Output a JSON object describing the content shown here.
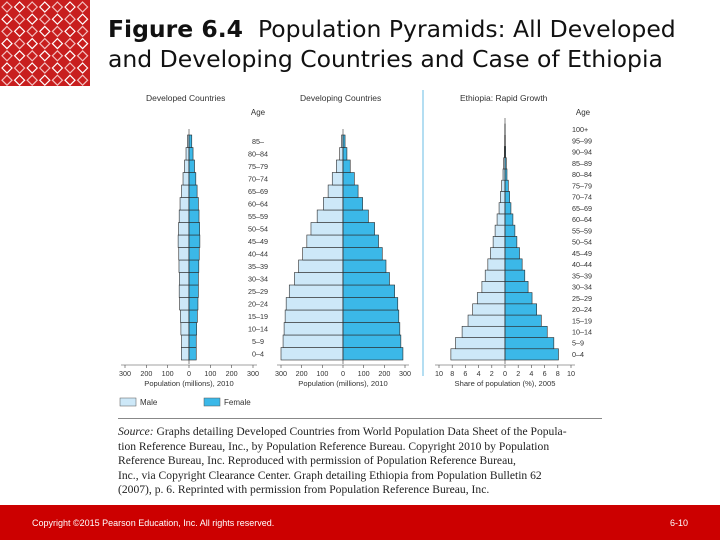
{
  "title": {
    "figure_label": "Figure 6.4",
    "text_line1": "Population Pyramids: All Developed",
    "text_line2": "and Developing Countries and Case of Ethiopia"
  },
  "source": {
    "lead": "Source:",
    "lines": [
      "Graphs detailing Developed Countries from World Population Data Sheet of the Popula-",
      "tion Reference Bureau, Inc., by Population Reference Bureau. Copyright 2010 by Population",
      "Reference Bureau, Inc. Reproduced with permission of Population Reference Bureau,",
      "Inc., via Copyright Clearance Center. Graph detailing Ethiopia from Population Bulletin 62",
      "(2007), p. 6. Reprinted with permission from Population Reference Bureau, Inc."
    ]
  },
  "footer": {
    "copyright": "Copyright ©2015 Pearson Education, Inc. All rights reserved.",
    "page": "6-10"
  },
  "colors": {
    "male": "#cde8f8",
    "female": "#3bb8e8",
    "footer": "#cc0000"
  },
  "chart_data": [
    {
      "type": "bar",
      "subtype": "population-pyramid",
      "title": "Developed Countries",
      "age_header": "Age",
      "categories": [
        "0–4",
        "5–9",
        "10–14",
        "15–19",
        "20–24",
        "25–29",
        "30–34",
        "35–39",
        "40–44",
        "45–49",
        "50–54",
        "55–59",
        "60–64",
        "65–69",
        "70–74",
        "75–79",
        "80–84",
        "85–"
      ],
      "series": [
        {
          "name": "Male",
          "values": [
            36,
            35,
            38,
            40,
            44,
            46,
            45,
            47,
            48,
            51,
            49,
            46,
            42,
            35,
            28,
            21,
            14,
            7
          ]
        },
        {
          "name": "Female",
          "values": [
            34,
            34,
            36,
            39,
            42,
            44,
            44,
            46,
            48,
            51,
            50,
            47,
            44,
            38,
            32,
            26,
            19,
            13
          ]
        }
      ],
      "xlabel": "Population (millions), 2010",
      "xticks": [
        "300",
        "200",
        "100",
        "0",
        "100",
        "200",
        "300"
      ],
      "xlim": [
        -300,
        300
      ]
    },
    {
      "type": "bar",
      "subtype": "population-pyramid",
      "title": "Developing Countries",
      "categories": [
        "0–4",
        "5–9",
        "10–14",
        "15–19",
        "20–24",
        "25–29",
        "30–34",
        "35–39",
        "40–44",
        "45–49",
        "50–54",
        "55–59",
        "60–64",
        "65–69",
        "70–74",
        "75–79",
        "80–84",
        "85–"
      ],
      "series": [
        {
          "name": "Male",
          "values": [
            300,
            290,
            285,
            280,
            275,
            260,
            235,
            215,
            195,
            175,
            155,
            125,
            95,
            72,
            52,
            32,
            16,
            7
          ]
        },
        {
          "name": "Female",
          "values": [
            290,
            280,
            275,
            270,
            265,
            250,
            225,
            208,
            190,
            172,
            153,
            123,
            95,
            73,
            55,
            35,
            19,
            10
          ]
        }
      ],
      "xlabel": "Population (millions), 2010",
      "xticks": [
        "300",
        "200",
        "100",
        "0",
        "100",
        "200",
        "300"
      ],
      "xlim": [
        -300,
        300
      ]
    },
    {
      "type": "bar",
      "subtype": "population-pyramid",
      "title": "Ethiopia: Rapid Growth",
      "age_header": "Age",
      "categories": [
        "0–4",
        "5–9",
        "10–14",
        "15–19",
        "20–24",
        "25–29",
        "30–34",
        "35–39",
        "40–44",
        "45–49",
        "50–54",
        "55–59",
        "60–64",
        "65–69",
        "70–74",
        "75–79",
        "80–84",
        "85–89",
        "90–94",
        "95–99",
        "100+"
      ],
      "series": [
        {
          "name": "Male",
          "values": [
            8.2,
            7.5,
            6.5,
            5.6,
            4.9,
            4.2,
            3.5,
            3.0,
            2.6,
            2.2,
            1.8,
            1.5,
            1.2,
            0.9,
            0.7,
            0.5,
            0.3,
            0.2,
            0.1,
            0.05,
            0.02
          ]
        },
        {
          "name": "Female",
          "values": [
            8.1,
            7.4,
            6.4,
            5.5,
            4.8,
            4.1,
            3.5,
            3.0,
            2.6,
            2.2,
            1.8,
            1.5,
            1.2,
            0.9,
            0.7,
            0.5,
            0.3,
            0.2,
            0.1,
            0.05,
            0.02
          ]
        }
      ],
      "xlabel": "Share of population (%), 2005",
      "xticks": [
        "10",
        "8",
        "6",
        "4",
        "2",
        "0",
        "2",
        "4",
        "6",
        "8",
        "10"
      ],
      "xlim": [
        -10,
        10
      ]
    }
  ],
  "legend": {
    "male": "Male",
    "female": "Female"
  }
}
